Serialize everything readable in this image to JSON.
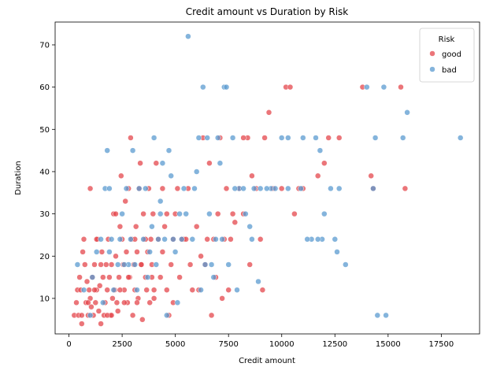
{
  "chart_data": {
    "type": "scatter",
    "title": "Credit amount vs Duration by Risk",
    "xlabel": "Credit amount",
    "ylabel": "Duration",
    "xlim": [
      -650,
      19300
    ],
    "ylim": [
      1.6,
      75.4
    ],
    "xticks": [
      0,
      2500,
      5000,
      7500,
      10000,
      12500,
      15000,
      17500
    ],
    "yticks": [
      10,
      20,
      30,
      40,
      50,
      60,
      70
    ],
    "grid": false,
    "legend": {
      "title": "Risk",
      "position": "top-right"
    },
    "series": [
      {
        "name": "good",
        "color": "#e4474c",
        "points": [
          [
            250,
            6
          ],
          [
            350,
            9
          ],
          [
            400,
            12
          ],
          [
            450,
            6
          ],
          [
            500,
            15
          ],
          [
            550,
            12
          ],
          [
            600,
            4
          ],
          [
            650,
            21
          ],
          [
            700,
            24
          ],
          [
            750,
            18
          ],
          [
            800,
            9
          ],
          [
            850,
            14
          ],
          [
            900,
            6
          ],
          [
            950,
            12
          ],
          [
            1000,
            10
          ],
          [
            1050,
            8
          ],
          [
            1100,
            15
          ],
          [
            1150,
            6
          ],
          [
            1200,
            18
          ],
          [
            1250,
            9
          ],
          [
            1300,
            12
          ],
          [
            1350,
            24
          ],
          [
            1400,
            7
          ],
          [
            1450,
            13
          ],
          [
            1500,
            4
          ],
          [
            1550,
            21
          ],
          [
            1600,
            15
          ],
          [
            1650,
            6
          ],
          [
            1700,
            9
          ],
          [
            1750,
            18
          ],
          [
            1800,
            12
          ],
          [
            1850,
            24
          ],
          [
            1900,
            15
          ],
          [
            1950,
            6
          ],
          [
            2000,
            18
          ],
          [
            2050,
            10
          ],
          [
            2100,
            30
          ],
          [
            2150,
            12
          ],
          [
            2200,
            20
          ],
          [
            2250,
            9
          ],
          [
            2300,
            7
          ],
          [
            2350,
            15
          ],
          [
            2400,
            27
          ],
          [
            2450,
            39
          ],
          [
            2500,
            24
          ],
          [
            2550,
            18
          ],
          [
            2600,
            12
          ],
          [
            2650,
            33
          ],
          [
            2700,
            21
          ],
          [
            2750,
            9
          ],
          [
            2800,
            36
          ],
          [
            2850,
            15
          ],
          [
            2900,
            48
          ],
          [
            2950,
            24
          ],
          [
            3000,
            6
          ],
          [
            3050,
            18
          ],
          [
            3100,
            12
          ],
          [
            3150,
            27
          ],
          [
            3200,
            21
          ],
          [
            3250,
            10
          ],
          [
            3300,
            36
          ],
          [
            3350,
            42
          ],
          [
            3400,
            18
          ],
          [
            3450,
            5
          ],
          [
            3500,
            30
          ],
          [
            3550,
            24
          ],
          [
            3600,
            15
          ],
          [
            3650,
            12
          ],
          [
            3700,
            21
          ],
          [
            3750,
            36
          ],
          [
            3800,
            9
          ],
          [
            3850,
            24
          ],
          [
            3900,
            18
          ],
          [
            3950,
            30
          ],
          [
            4000,
            12
          ],
          [
            4100,
            42
          ],
          [
            4200,
            24
          ],
          [
            4300,
            15
          ],
          [
            4400,
            36
          ],
          [
            4500,
            27
          ],
          [
            4600,
            12
          ],
          [
            4700,
            6
          ],
          [
            4800,
            18
          ],
          [
            4900,
            24
          ],
          [
            5000,
            30
          ],
          [
            5200,
            15
          ],
          [
            5400,
            24
          ],
          [
            5600,
            36
          ],
          [
            5800,
            12
          ],
          [
            6000,
            27
          ],
          [
            6200,
            20
          ],
          [
            6400,
            18
          ],
          [
            6600,
            42
          ],
          [
            6800,
            24
          ],
          [
            7000,
            30
          ],
          [
            7200,
            10
          ],
          [
            7400,
            36
          ],
          [
            7600,
            24
          ],
          [
            7800,
            28
          ],
          [
            8000,
            36
          ],
          [
            8200,
            30
          ],
          [
            8400,
            48
          ],
          [
            8600,
            39
          ],
          [
            8800,
            36
          ],
          [
            9000,
            24
          ],
          [
            9200,
            48
          ],
          [
            9400,
            54
          ],
          [
            9600,
            36
          ],
          [
            10000,
            36
          ],
          [
            10200,
            60
          ],
          [
            10400,
            60
          ],
          [
            10600,
            30
          ],
          [
            10800,
            36
          ],
          [
            11000,
            36
          ],
          [
            12000,
            42
          ],
          [
            12200,
            48
          ],
          [
            12700,
            48
          ],
          [
            13800,
            60
          ],
          [
            14200,
            39
          ],
          [
            14300,
            36
          ],
          [
            15600,
            60
          ],
          [
            15800,
            36
          ],
          [
            1000,
            36
          ],
          [
            1300,
            24
          ],
          [
            1800,
            6
          ],
          [
            2200,
            30
          ],
          [
            2600,
            9
          ],
          [
            3100,
            24
          ],
          [
            3400,
            18
          ],
          [
            3900,
            15
          ],
          [
            4400,
            21
          ],
          [
            4900,
            9
          ],
          [
            5300,
            24
          ],
          [
            5700,
            18
          ],
          [
            6100,
            12
          ],
          [
            6500,
            24
          ],
          [
            6900,
            15
          ],
          [
            7300,
            24
          ],
          [
            7700,
            30
          ],
          [
            8200,
            48
          ],
          [
            9100,
            12
          ],
          [
            600,
            6
          ],
          [
            900,
            9
          ],
          [
            1200,
            12
          ],
          [
            1500,
            18
          ],
          [
            2000,
            6
          ],
          [
            2400,
            12
          ],
          [
            2800,
            15
          ],
          [
            3200,
            9
          ],
          [
            3600,
            24
          ],
          [
            4000,
            10
          ],
          [
            4600,
            30
          ],
          [
            5100,
            36
          ],
          [
            5500,
            24
          ],
          [
            6300,
            48
          ],
          [
            6700,
            6
          ],
          [
            7100,
            48
          ],
          [
            7500,
            12
          ],
          [
            8500,
            18
          ],
          [
            11700,
            39
          ]
        ]
      },
      {
        "name": "bad",
        "color": "#5b9bd0",
        "points": [
          [
            400,
            18
          ],
          [
            700,
            12
          ],
          [
            1000,
            6
          ],
          [
            1300,
            21
          ],
          [
            1500,
            24
          ],
          [
            1700,
            36
          ],
          [
            1800,
            45
          ],
          [
            1900,
            21
          ],
          [
            2100,
            12
          ],
          [
            2300,
            18
          ],
          [
            2500,
            30
          ],
          [
            2700,
            36
          ],
          [
            2900,
            24
          ],
          [
            3000,
            45
          ],
          [
            3100,
            18
          ],
          [
            3300,
            36
          ],
          [
            3500,
            24
          ],
          [
            3700,
            15
          ],
          [
            3900,
            27
          ],
          [
            4000,
            48
          ],
          [
            4100,
            18
          ],
          [
            4300,
            33
          ],
          [
            4500,
            24
          ],
          [
            4600,
            6
          ],
          [
            4700,
            45
          ],
          [
            4800,
            39
          ],
          [
            5000,
            21
          ],
          [
            5100,
            9
          ],
          [
            5200,
            30
          ],
          [
            5400,
            36
          ],
          [
            5600,
            72
          ],
          [
            5800,
            24
          ],
          [
            6000,
            40
          ],
          [
            6200,
            12
          ],
          [
            6300,
            60
          ],
          [
            6500,
            48
          ],
          [
            6700,
            18
          ],
          [
            6800,
            15
          ],
          [
            7000,
            48
          ],
          [
            7200,
            24
          ],
          [
            7300,
            60
          ],
          [
            7500,
            18
          ],
          [
            7700,
            48
          ],
          [
            7900,
            12
          ],
          [
            8000,
            36
          ],
          [
            8300,
            30
          ],
          [
            8500,
            27
          ],
          [
            8600,
            24
          ],
          [
            8700,
            36
          ],
          [
            8900,
            14
          ],
          [
            9000,
            36
          ],
          [
            9500,
            36
          ],
          [
            10000,
            48
          ],
          [
            10300,
            48
          ],
          [
            11000,
            48
          ],
          [
            11400,
            24
          ],
          [
            11600,
            48
          ],
          [
            11800,
            45
          ],
          [
            11900,
            24
          ],
          [
            12000,
            30
          ],
          [
            12300,
            36
          ],
          [
            12500,
            24
          ],
          [
            12600,
            21
          ],
          [
            12700,
            36
          ],
          [
            13000,
            18
          ],
          [
            14000,
            60
          ],
          [
            14300,
            36
          ],
          [
            14400,
            48
          ],
          [
            14500,
            6
          ],
          [
            14800,
            60
          ],
          [
            14900,
            6
          ],
          [
            15700,
            48
          ],
          [
            15900,
            54
          ],
          [
            18400,
            48
          ],
          [
            1900,
            36
          ],
          [
            2400,
            24
          ],
          [
            2800,
            18
          ],
          [
            3600,
            36
          ],
          [
            4200,
            24
          ],
          [
            4400,
            42
          ],
          [
            5300,
            24
          ],
          [
            6100,
            48
          ],
          [
            6600,
            30
          ],
          [
            7100,
            42
          ],
          [
            7800,
            36
          ],
          [
            8200,
            36
          ],
          [
            9700,
            36
          ],
          [
            10300,
            36
          ],
          [
            11200,
            24
          ],
          [
            11700,
            24
          ],
          [
            1100,
            15
          ],
          [
            1600,
            9
          ],
          [
            2000,
            24
          ],
          [
            2600,
            18
          ],
          [
            3200,
            12
          ],
          [
            3800,
            21
          ],
          [
            4300,
            30
          ],
          [
            4900,
            24
          ],
          [
            5500,
            30
          ],
          [
            5900,
            36
          ],
          [
            6400,
            18
          ],
          [
            6900,
            24
          ],
          [
            7400,
            60
          ],
          [
            9300,
            36
          ],
          [
            10900,
            36
          ]
        ]
      }
    ]
  }
}
